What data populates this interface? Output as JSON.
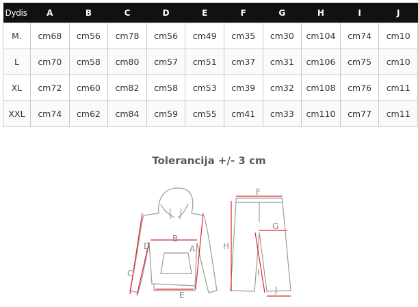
{
  "table": {
    "headers": [
      "Dydis",
      "A",
      "B",
      "C",
      "D",
      "E",
      "F",
      "G",
      "H",
      "I",
      "J"
    ],
    "rows": [
      [
        "M.",
        "cm68",
        "cm56",
        "cm78",
        "cm56",
        "cm49",
        "cm35",
        "cm30",
        "cm104",
        "cm74",
        "cm10"
      ],
      [
        "L",
        "cm70",
        "cm58",
        "cm80",
        "cm57",
        "cm51",
        "cm37",
        "cm31",
        "cm106",
        "cm75",
        "cm10"
      ],
      [
        "XL",
        "cm72",
        "cm60",
        "cm82",
        "cm58",
        "cm53",
        "cm39",
        "cm32",
        "cm108",
        "cm76",
        "cm11"
      ],
      [
        "XXL",
        "cm74",
        "cm62",
        "cm84",
        "cm59",
        "cm55",
        "cm41",
        "cm33",
        "cm110",
        "cm77",
        "cm11"
      ]
    ]
  },
  "tolerance": "Tolerancija +/- 3 cm",
  "diagram": {
    "labels": {
      "A": "A",
      "B": "B",
      "C": "C",
      "D": "D",
      "E": "E",
      "F": "F",
      "G": "G",
      "H": "H",
      "I": "I",
      "J": "J"
    },
    "arrow_color": "#e0202a",
    "outline_color": "#9a9a9a"
  }
}
